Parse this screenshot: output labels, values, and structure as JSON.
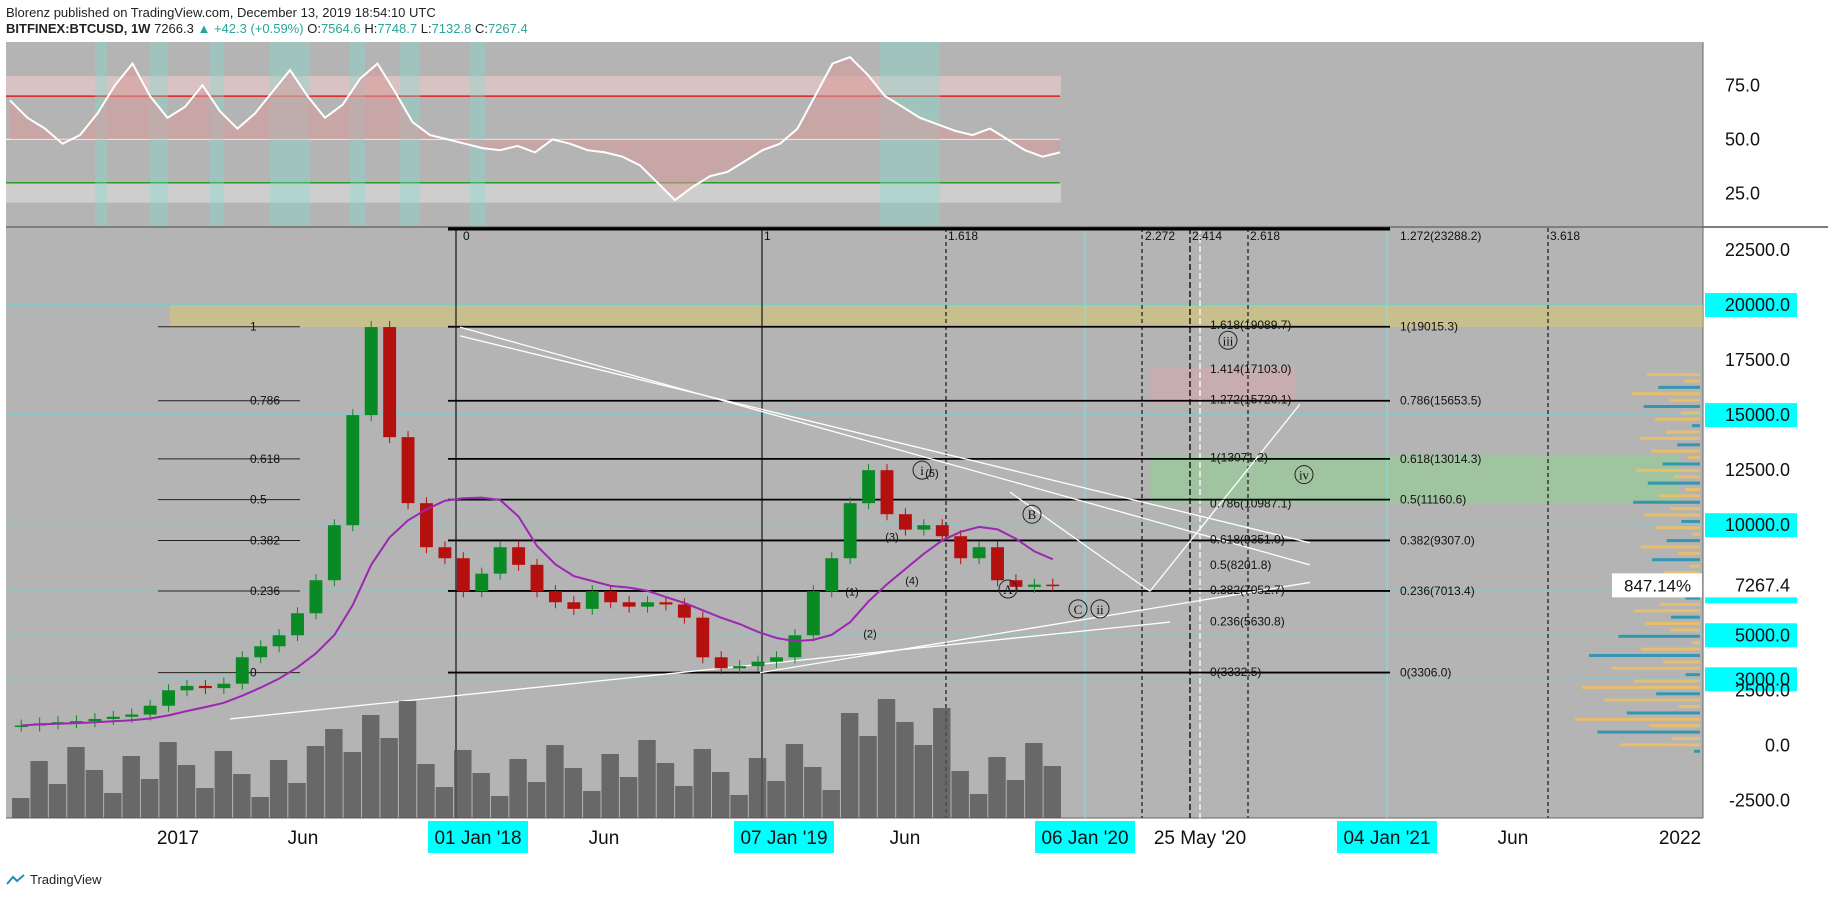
{
  "header": {
    "published": "Blorenz published on TradingView.com, December 13, 2019 18:54:10 UTC",
    "symbol": "BITFINEX:BTCUSD, 1W",
    "last": "7266.3",
    "change": "▲ +42.3 (+0.59%)",
    "open_label": "O:",
    "open": "7564.6",
    "high_label": "H:",
    "high": "7748.7",
    "low_label": "L:",
    "low": "7132.8",
    "close_label": "C:",
    "close": "7267.4"
  },
  "footer": {
    "brand": "TradingView"
  },
  "colors": {
    "background": "#b4b4b4",
    "up_candle": "#0a8a24",
    "down_candle": "#b51010",
    "highlight": "#00ffff",
    "fib_line": "#000000",
    "sma_purple": "#9c27b0",
    "rsi_fill": "#d99a9a",
    "rsi_line": "#ffffff",
    "volume": "#555555",
    "vp_orange": "#f0c060",
    "vp_blue": "#1e90b0"
  },
  "chart_data": [
    {
      "type": "line",
      "pane": "oscillator",
      "yticks": [
        75.0,
        50.0,
        25.0
      ],
      "ylim": [
        10,
        95
      ],
      "bands": {
        "upper": 70,
        "middle": 50,
        "lower": 30
      },
      "series": [
        {
          "values": [
            68,
            60,
            55,
            48,
            52,
            62,
            75,
            85,
            70,
            60,
            65,
            75,
            63,
            55,
            62,
            72,
            82,
            70,
            60,
            66,
            78,
            85,
            72,
            58,
            52,
            50,
            48,
            46,
            45,
            47,
            44,
            50,
            48,
            45,
            44,
            42,
            38,
            30,
            22,
            28,
            33,
            35,
            40,
            45,
            48,
            55,
            70,
            85,
            88,
            80,
            70,
            65,
            60,
            57,
            54,
            52,
            55,
            50,
            45,
            42,
            44
          ]
        }
      ]
    },
    {
      "type": "line",
      "pane": "price",
      "x_ticks": [
        "2017",
        "Jun",
        "01 Jan '18",
        "Jun",
        "07 Jan '19",
        "Jun",
        "06 Jan '20",
        "25 May '20",
        "04 Jan '21",
        "Jun",
        "2022"
      ],
      "yticks": [
        22500.0,
        20000.0,
        17500.0,
        15000.0,
        12500.0,
        10000.0,
        7000.0,
        5000.0,
        3000.0,
        2500.0,
        0.0,
        -2500.0
      ],
      "ylim": [
        -3300,
        23500
      ],
      "highlighted_levels": [
        20000.0,
        15000.0,
        10000.0,
        7000.0,
        5000.0,
        3000.0
      ],
      "series": [
        {
          "values": [
            900,
            1000,
            1050,
            1100,
            1200,
            1300,
            1400,
            1800,
            2500,
            2700,
            2600,
            2800,
            4000,
            4500,
            5000,
            6000,
            7500,
            10000,
            15000,
            19000,
            14000,
            11000,
            9000,
            8500,
            7000,
            7800,
            9000,
            8200,
            7000,
            6500,
            6200,
            7000,
            6500,
            6300,
            6500,
            6400,
            5800,
            4000,
            3500,
            3600,
            3800,
            4000,
            5000,
            7000,
            8500,
            11000,
            12500,
            10500,
            9800,
            10000,
            9500,
            8500,
            9000,
            7500,
            7200,
            7300,
            7267
          ]
        }
      ],
      "current_price_label": "7267.4",
      "percent_label": "847.14%"
    }
  ],
  "annotations": {
    "fib_left": [
      "1",
      "0.786",
      "0.618",
      "0.5",
      "0.382",
      "0.236",
      "0"
    ],
    "fib_right": [
      "1(19015.3)",
      "0.786(15653.5)",
      "0.618(13014.3)",
      "0.5(11160.6)",
      "0.382(9307.0)",
      "0.236(7013.4)",
      "0(3306.0)"
    ],
    "fib_mid": [
      "1.618(19089.7)",
      "1.414(17103.0)",
      "1.272(15720.1)",
      "1(13071.2)",
      "0.786(10987.1)",
      "0.618(9351.0)",
      "0.5(8201.8)",
      "0.382(7052.7)",
      "0.236(5630.8)",
      "0(3332.5)"
    ],
    "fib_top": [
      "0",
      "1",
      "1.618",
      "2.272",
      "2.414",
      "2.618",
      "1.272(23288.2)",
      "3.618"
    ],
    "waves": [
      "i",
      "iii",
      "iv",
      "B",
      "A",
      "C",
      "ii"
    ],
    "wave_sub": [
      "(1)",
      "(2)",
      "(3)",
      "(4)",
      "(5)"
    ]
  }
}
